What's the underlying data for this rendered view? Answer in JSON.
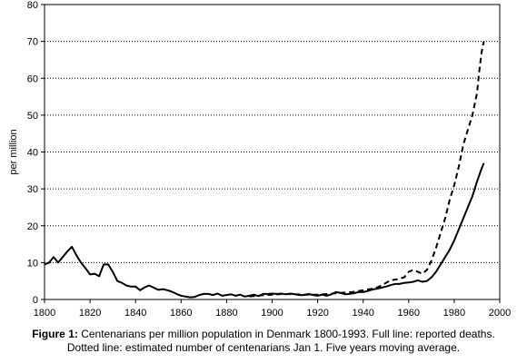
{
  "chart_data": {
    "type": "line",
    "title": "",
    "xlabel": "",
    "ylabel": "per million",
    "xlim": [
      1800,
      2000
    ],
    "ylim": [
      0,
      80
    ],
    "x_ticks": [
      "1800",
      "1820",
      "1840",
      "1860",
      "1880",
      "1900",
      "1920",
      "1940",
      "1960",
      "1980",
      "2000"
    ],
    "y_ticks": [
      "0",
      "10",
      "20",
      "30",
      "40",
      "50",
      "60",
      "70",
      "80"
    ],
    "grid": "horizontal dotted",
    "legend": "none",
    "series": [
      {
        "style": "solid",
        "color": "#000000",
        "points": [
          [
            1800,
            9.5
          ],
          [
            1802,
            10
          ],
          [
            1804,
            11.5
          ],
          [
            1806,
            10
          ],
          [
            1808,
            11.5
          ],
          [
            1810,
            13
          ],
          [
            1812,
            14.3
          ],
          [
            1814,
            12
          ],
          [
            1816,
            10
          ],
          [
            1818,
            8.5
          ],
          [
            1820,
            6.8
          ],
          [
            1822,
            7
          ],
          [
            1824,
            6.3
          ],
          [
            1826,
            9.5
          ],
          [
            1828,
            9.5
          ],
          [
            1830,
            7.5
          ],
          [
            1832,
            5
          ],
          [
            1834,
            4.5
          ],
          [
            1836,
            3.8
          ],
          [
            1838,
            3.5
          ],
          [
            1840,
            3.5
          ],
          [
            1842,
            2.5
          ],
          [
            1844,
            3.3
          ],
          [
            1846,
            3.8
          ],
          [
            1848,
            3.2
          ],
          [
            1850,
            2.6
          ],
          [
            1852,
            2.8
          ],
          [
            1854,
            2.5
          ],
          [
            1856,
            2.1
          ],
          [
            1858,
            1.5
          ],
          [
            1860,
            1.0
          ],
          [
            1862,
            0.8
          ],
          [
            1864,
            0.6
          ],
          [
            1866,
            0.7
          ],
          [
            1868,
            1.2
          ],
          [
            1870,
            1.5
          ],
          [
            1872,
            1.5
          ],
          [
            1874,
            1.2
          ],
          [
            1876,
            1.6
          ],
          [
            1878,
            1.0
          ],
          [
            1880,
            1.2
          ],
          [
            1882,
            1.4
          ],
          [
            1884,
            1.0
          ],
          [
            1886,
            1.3
          ],
          [
            1888,
            0.8
          ],
          [
            1890,
            1.0
          ],
          [
            1892,
            1.3
          ],
          [
            1894,
            0.9
          ],
          [
            1896,
            1.5
          ],
          [
            1898,
            1.5
          ],
          [
            1900,
            1.6
          ],
          [
            1902,
            1.5
          ],
          [
            1904,
            1.6
          ],
          [
            1906,
            1.4
          ],
          [
            1908,
            1.6
          ],
          [
            1910,
            1.4
          ],
          [
            1912,
            1.2
          ],
          [
            1914,
            1.2
          ],
          [
            1916,
            1.5
          ],
          [
            1918,
            1.2
          ],
          [
            1920,
            1.0
          ],
          [
            1922,
            1.3
          ],
          [
            1924,
            1.0
          ],
          [
            1926,
            1.4
          ],
          [
            1928,
            2.0
          ],
          [
            1930,
            1.8
          ],
          [
            1932,
            1.4
          ],
          [
            1934,
            1.5
          ],
          [
            1936,
            1.7
          ],
          [
            1938,
            2.0
          ],
          [
            1940,
            2.0
          ],
          [
            1942,
            2.3
          ],
          [
            1944,
            2.7
          ],
          [
            1946,
            2.9
          ],
          [
            1948,
            3.2
          ],
          [
            1950,
            3.5
          ],
          [
            1952,
            3.9
          ],
          [
            1954,
            4.2
          ],
          [
            1956,
            4.2
          ],
          [
            1958,
            4.5
          ],
          [
            1960,
            4.6
          ],
          [
            1962,
            4.8
          ],
          [
            1964,
            5.2
          ],
          [
            1966,
            4.8
          ],
          [
            1968,
            5.0
          ],
          [
            1970,
            6.0
          ],
          [
            1972,
            7.5
          ],
          [
            1974,
            9.5
          ],
          [
            1976,
            11.5
          ],
          [
            1978,
            13.5
          ],
          [
            1980,
            16
          ],
          [
            1982,
            19
          ],
          [
            1984,
            22
          ],
          [
            1986,
            25
          ],
          [
            1988,
            28
          ],
          [
            1990,
            32
          ],
          [
            1992,
            35.5
          ],
          [
            1993,
            37
          ]
        ]
      },
      {
        "style": "dashed",
        "color": "#000000",
        "points": [
          [
            1890,
            0.8
          ],
          [
            1895,
            1.1
          ],
          [
            1900,
            1.3
          ],
          [
            1905,
            1.5
          ],
          [
            1910,
            1.4
          ],
          [
            1915,
            1.3
          ],
          [
            1920,
            1.3
          ],
          [
            1925,
            1.5
          ],
          [
            1930,
            1.8
          ],
          [
            1935,
            2.0
          ],
          [
            1940,
            2.5
          ],
          [
            1945,
            3.0
          ],
          [
            1948,
            3.8
          ],
          [
            1950,
            4.5
          ],
          [
            1952,
            5.2
          ],
          [
            1955,
            5.5
          ],
          [
            1958,
            6.0
          ],
          [
            1960,
            7.5
          ],
          [
            1962,
            8.0
          ],
          [
            1964,
            7.5
          ],
          [
            1966,
            7.0
          ],
          [
            1968,
            8.0
          ],
          [
            1970,
            10.5
          ],
          [
            1972,
            14
          ],
          [
            1974,
            18
          ],
          [
            1976,
            22
          ],
          [
            1978,
            27
          ],
          [
            1980,
            31
          ],
          [
            1982,
            36
          ],
          [
            1984,
            42
          ],
          [
            1986,
            46
          ],
          [
            1988,
            50
          ],
          [
            1990,
            56
          ],
          [
            1991,
            62
          ],
          [
            1992,
            67
          ],
          [
            1993,
            70
          ]
        ]
      }
    ]
  },
  "caption": {
    "label": "Figure 1:",
    "line1": " Centenarians per million population in Denmark 1800-1993. Full line: reported deaths.",
    "line2": "Dotted line: estimated number of centenarians Jan 1. Five years moving average."
  }
}
